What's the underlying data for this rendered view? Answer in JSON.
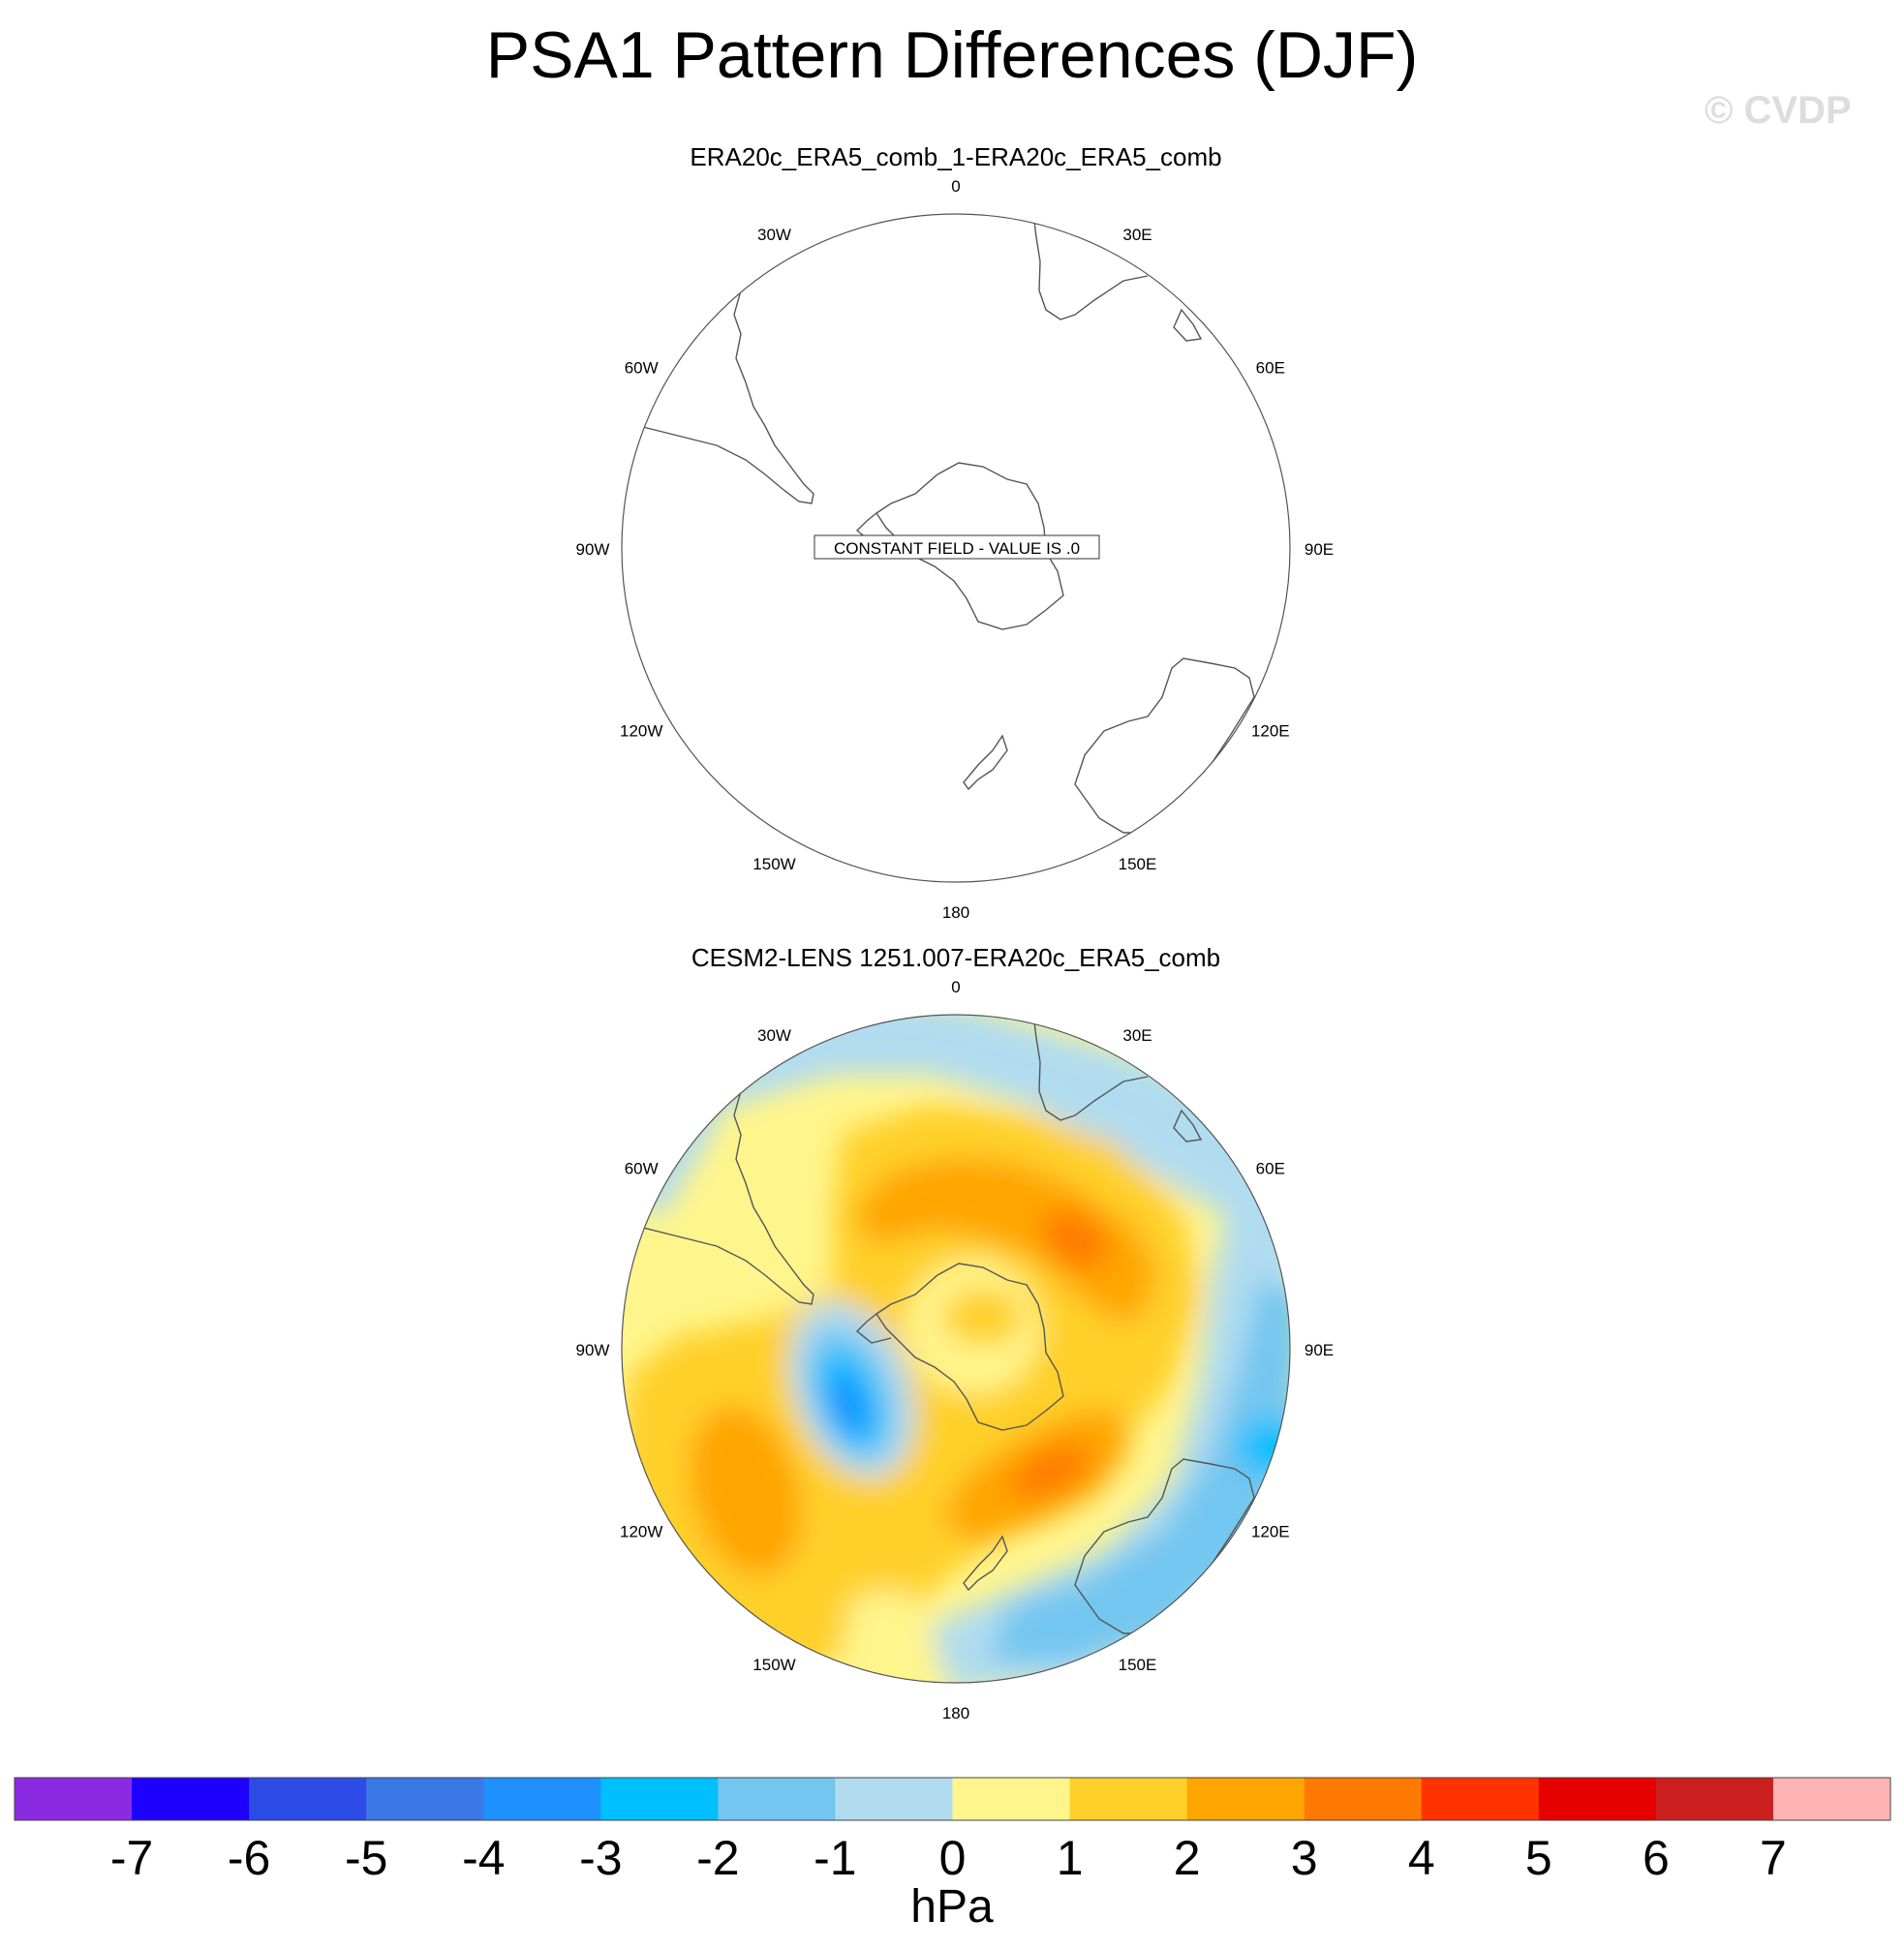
{
  "title": "PSA1 Pattern Differences (DJF)",
  "watermark": "© CVDP",
  "chart_data": {
    "type": "heatmap",
    "projection": "south polar stereographic",
    "units": "hPa",
    "lon_labels": [
      "0",
      "30E",
      "60E",
      "90E",
      "120E",
      "150E",
      "180",
      "150W",
      "120W",
      "90W",
      "60W",
      "30W"
    ],
    "panels": [
      {
        "subtitle": "ERA20c_ERA5_comb_1-ERA20c_ERA5_comb",
        "constant_field": true,
        "annotation": "CONSTANT FIELD - VALUE IS .0"
      },
      {
        "subtitle": "CESM2-LENS 1251.007-ERA20c_ERA5_comb",
        "constant_field": false,
        "annotation": "",
        "features": [
          {
            "lon": 60,
            "lat": -45,
            "value": 3.5
          },
          {
            "lon": 135,
            "lat": -55,
            "value": 3.5
          },
          {
            "lon": 145,
            "lat": -35,
            "value": -1.5
          },
          {
            "lon": 90,
            "lat": -30,
            "value": -2.5
          },
          {
            "lon": -105,
            "lat": -60,
            "value": -3.5
          },
          {
            "lon": -135,
            "lat": -40,
            "value": 2.5
          },
          {
            "lon": 0,
            "lat": -75,
            "value": 0.5
          }
        ]
      }
    ],
    "colorbar": {
      "label": "hPa",
      "levels": [
        -7,
        -6,
        -5,
        -4,
        -3,
        -2,
        -1,
        0,
        1,
        2,
        3,
        4,
        5,
        6,
        7
      ],
      "colors": [
        "#8a2be2",
        "#1e00ff",
        "#2d4be6",
        "#3a78e6",
        "#1e90ff",
        "#00bfff",
        "#73c6f0",
        "#b1dcf0",
        "#fff58c",
        "#ffd02a",
        "#ffa500",
        "#ff7a00",
        "#ff3300",
        "#e60000",
        "#cc1f1f",
        "#ffb4b4"
      ]
    }
  }
}
